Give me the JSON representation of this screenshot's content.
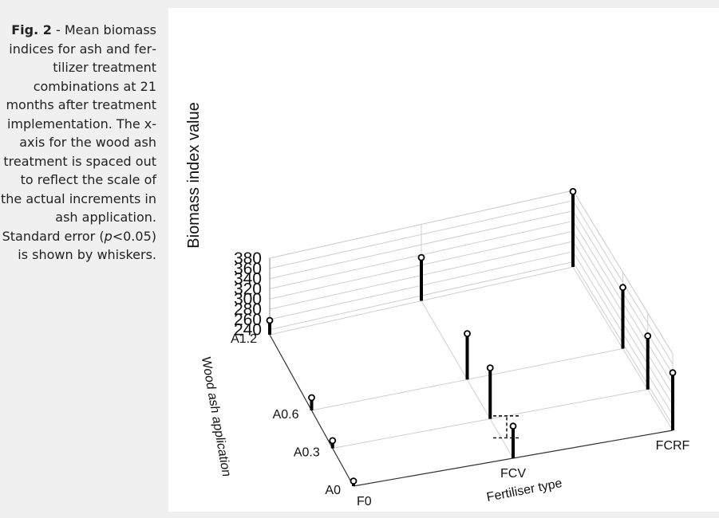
{
  "caption": {
    "figure_label": "Fig. 2",
    "separator": " - ",
    "text_before_italic": "Mean biomass indices for ash and fer­tilizer treatment combinations at 21 months after treatment imple­mentation. The x-axis for the wood ash treat­ment is spaced out to reflect the scale of the actual incre­ments in ash application. Standard error (",
    "italic": "p",
    "text_after_italic": "<0.05) is shown by whiskers."
  },
  "chart_data": {
    "type": "3d-bar",
    "xlabel": "Fertiliser type",
    "ylabel": "Biomass index value",
    "zlabel": "Wood ash application",
    "fertiliser_categories": [
      "F0",
      "FCV",
      "FCRF"
    ],
    "ash_categories": [
      "A0",
      "A0.3",
      "A0.6",
      "A1.2"
    ],
    "ylim": [
      230,
      380
    ],
    "yticks": [
      240,
      260,
      280,
      300,
      320,
      340,
      360,
      380
    ],
    "grid": true,
    "points": [
      {
        "fertiliser": "F0",
        "ash": "A0",
        "value": 240
      },
      {
        "fertiliser": "F0",
        "ash": "A0.3",
        "value": 245
      },
      {
        "fertiliser": "F0",
        "ash": "A0.6",
        "value": 255
      },
      {
        "fertiliser": "F0",
        "ash": "A1.2",
        "value": 258
      },
      {
        "fertiliser": "FCV",
        "ash": "A0",
        "value": 293
      },
      {
        "fertiliser": "FCV",
        "ash": "A0.3",
        "value": 330
      },
      {
        "fertiliser": "FCV",
        "ash": "A0.6",
        "value": 320
      },
      {
        "fertiliser": "FCV",
        "ash": "A1.2",
        "value": 315
      },
      {
        "fertiliser": "FCRF",
        "ash": "A0",
        "value": 343
      },
      {
        "fertiliser": "FCRF",
        "ash": "A0.3",
        "value": 335
      },
      {
        "fertiliser": "FCRF",
        "ash": "A0.6",
        "value": 350
      },
      {
        "fertiliser": "FCRF",
        "ash": "A1.2",
        "value": 378
      }
    ],
    "error_bar": {
      "fertiliser": "FCV",
      "ash": "A0",
      "low": 270,
      "high": 313
    }
  }
}
